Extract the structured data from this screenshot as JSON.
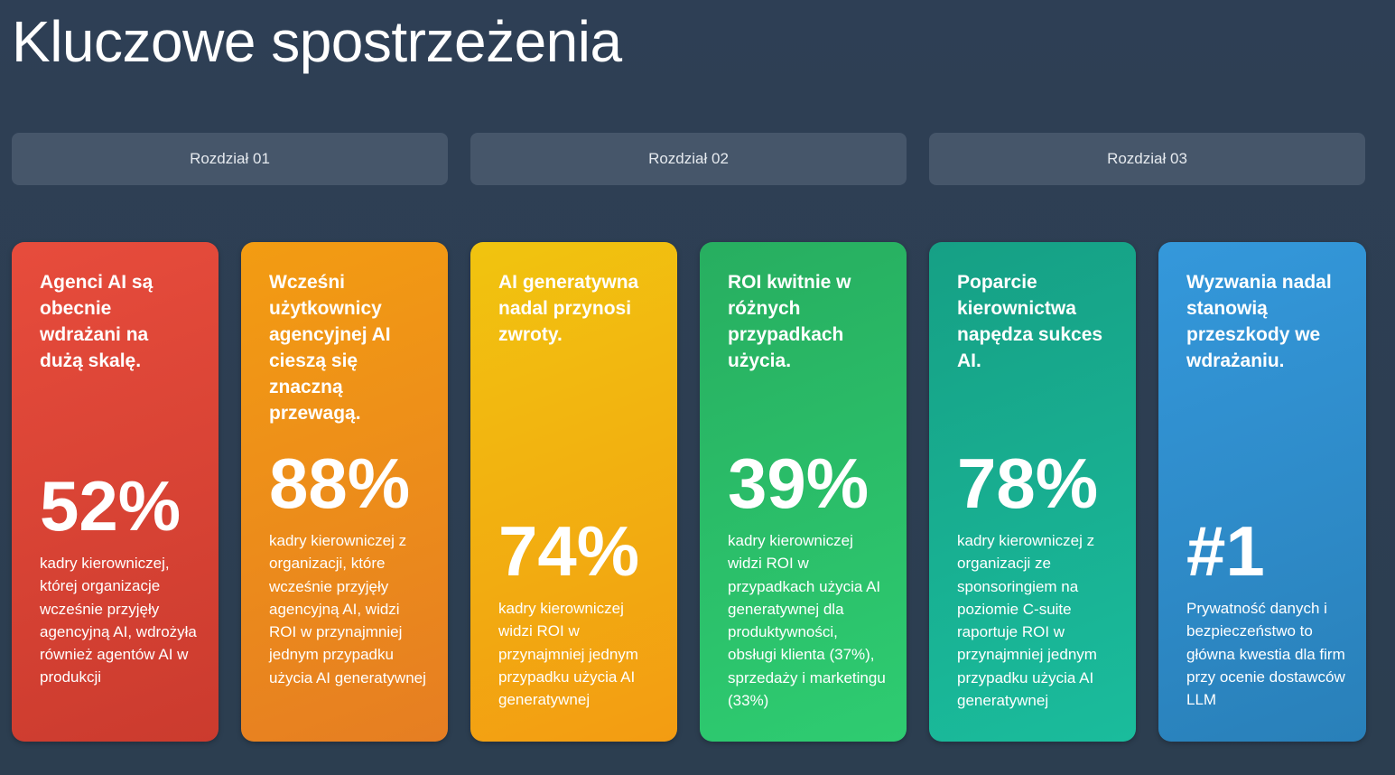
{
  "page": {
    "title": "Kluczowe spostrzeżenia"
  },
  "chapters": [
    {
      "label": "Rozdział 01"
    },
    {
      "label": "Rozdział 02"
    },
    {
      "label": "Rozdział 03"
    }
  ],
  "cards": [
    {
      "heading": "Agenci AI są obecnie wdrażani na dużą skalę.",
      "stat": "52%",
      "description": "kadry kierowniczej, której organizacje wcześnie przyjęły agencyjną AI, wdrożyła również agentów AI w produkcji",
      "color": "#e74c3c"
    },
    {
      "heading": "Wcześni użytkownicy agencyjnej AI cieszą się znaczną przewagą.",
      "stat": "88%",
      "description": "kadry kierowniczej z organizacji, które wcześnie przyjęły agencyjną AI, widzi ROI w przynajmniej jednym przypadku użycia AI generatywnej",
      "color": "#f39c12"
    },
    {
      "heading": "AI generatywna nadal przynosi zwroty.",
      "stat": "74%",
      "description": "kadry kierowniczej widzi ROI w przynajmniej jednym przypadku użycia AI generatywnej",
      "color": "#f1c40f"
    },
    {
      "heading": "ROI kwitnie w różnych przypadkach użycia.",
      "stat": "39%",
      "description": "kadry kierowniczej widzi ROI w przypadkach użycia AI generatywnej dla produktywności, obsługi klienta (37%), sprzedaży i marketingu (33%)",
      "color": "#27ae60"
    },
    {
      "heading": "Poparcie kierownictwa napędza sukces AI.",
      "stat": "78%",
      "description": "kadry kierowniczej z organizacji ze sponsoringiem na poziomie C-suite raportuje ROI w przynajmniej jednym przypadku użycia AI generatywnej",
      "color": "#16a085"
    },
    {
      "heading": "Wyzwania nadal stanowią przeszkody we wdrażaniu.",
      "stat": "#1",
      "description": "Prywatność danych i bezpieczeństwo to główna kwestia dla firm przy ocenie dostawców LLM",
      "color": "#3498db"
    }
  ]
}
